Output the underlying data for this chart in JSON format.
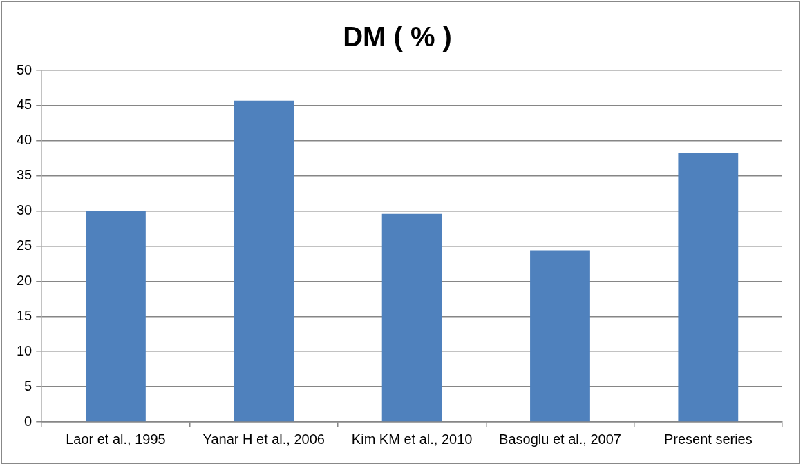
{
  "chart_data": {
    "type": "bar",
    "title": "DM ( % )",
    "categories": [
      "Laor et al., 1995",
      "Yanar H et al., 2006",
      "Kim KM et al., 2010",
      "Basoglu et al., 2007",
      "Present series"
    ],
    "values": [
      30,
      45.7,
      29.6,
      24.4,
      38.2
    ],
    "color": "#4f81bd",
    "ylim": [
      0,
      50
    ],
    "yticks": [
      0,
      5,
      10,
      15,
      20,
      25,
      30,
      35,
      40,
      45,
      50
    ],
    "grid": "y",
    "legend": false
  }
}
